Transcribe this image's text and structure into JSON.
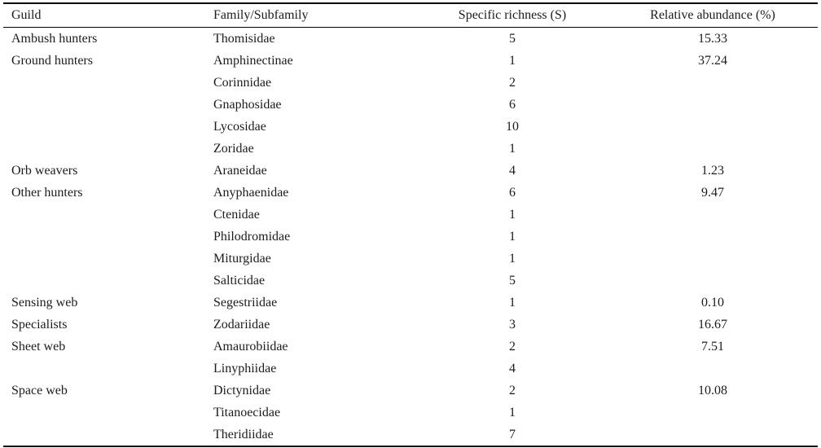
{
  "table": {
    "columns": [
      {
        "label": "Guild",
        "align": "left"
      },
      {
        "label": "Family/Subfamily",
        "align": "left"
      },
      {
        "label": "Specific richness (S)",
        "align": "center"
      },
      {
        "label": "Relative abundance (%)",
        "align": "center"
      }
    ],
    "rows": [
      {
        "guild": "Ambush hunters",
        "family": "Thomisidae",
        "richness": "5",
        "abundance": "15.33"
      },
      {
        "guild": "Ground hunters",
        "family": "Amphinectinae",
        "richness": "1",
        "abundance": "37.24"
      },
      {
        "guild": "",
        "family": "Corinnidae",
        "richness": "2",
        "abundance": ""
      },
      {
        "guild": "",
        "family": "Gnaphosidae",
        "richness": "6",
        "abundance": ""
      },
      {
        "guild": "",
        "family": "Lycosidae",
        "richness": "10",
        "abundance": ""
      },
      {
        "guild": "",
        "family": "Zoridae",
        "richness": "1",
        "abundance": ""
      },
      {
        "guild": "Orb weavers",
        "family": "Araneidae",
        "richness": "4",
        "abundance": "1.23"
      },
      {
        "guild": "Other hunters",
        "family": "Anyphaenidae",
        "richness": "6",
        "abundance": "9.47"
      },
      {
        "guild": "",
        "family": "Ctenidae",
        "richness": "1",
        "abundance": ""
      },
      {
        "guild": "",
        "family": "Philodromidae",
        "richness": "1",
        "abundance": ""
      },
      {
        "guild": "",
        "family": "Miturgidae",
        "richness": "1",
        "abundance": ""
      },
      {
        "guild": "",
        "family": "Salticidae",
        "richness": "5",
        "abundance": ""
      },
      {
        "guild": "Sensing web",
        "family": "Segestriidae",
        "richness": "1",
        "abundance": "0.10"
      },
      {
        "guild": "Specialists",
        "family": "Zodariidae",
        "richness": "3",
        "abundance": "16.67"
      },
      {
        "guild": "Sheet web",
        "family": "Amaurobiidae",
        "richness": "2",
        "abundance": "7.51"
      },
      {
        "guild": "",
        "family": "Linyphiidae",
        "richness": "4",
        "abundance": ""
      },
      {
        "guild": "Space web",
        "family": "Dictynidae",
        "richness": "2",
        "abundance": "10.08"
      },
      {
        "guild": "",
        "family": "Titanoecidae",
        "richness": "1",
        "abundance": ""
      },
      {
        "guild": "",
        "family": "Theridiidae",
        "richness": "7",
        "abundance": ""
      }
    ]
  },
  "colors": {
    "text": "#1c1c1c",
    "rule": "#000000",
    "background": "#ffffff"
  }
}
